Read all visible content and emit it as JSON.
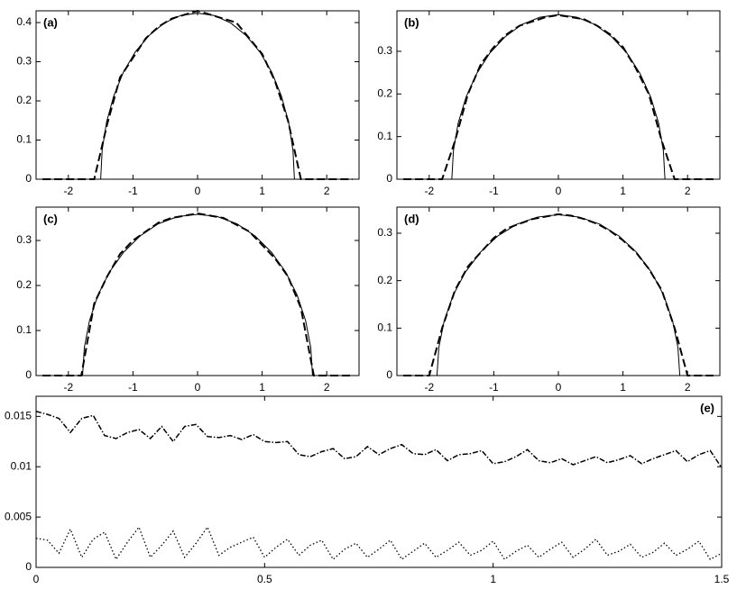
{
  "chart_data": [
    {
      "type": "line",
      "label": "(a)",
      "label_corner": "upper left",
      "xlim": [
        -2.5,
        2.5
      ],
      "ylim": [
        0,
        0.43
      ],
      "xticks": [
        -2,
        -1,
        0,
        1,
        2
      ],
      "yticks": [
        0,
        0.1,
        0.2,
        0.3,
        0.4
      ],
      "series": [
        {
          "color": "#000000",
          "dash": "solid",
          "x": [
            -1.5,
            -1.477,
            -1.41,
            -1.299,
            -1.149,
            -0.964,
            -0.75,
            -0.513,
            -0.261,
            0,
            0.261,
            0.513,
            0.75,
            0.964,
            1.149,
            1.299,
            1.41,
            1.477,
            1.5
          ],
          "values": [
            0,
            0.074,
            0.145,
            0.212,
            0.273,
            0.325,
            0.367,
            0.399,
            0.418,
            0.424,
            0.418,
            0.399,
            0.367,
            0.325,
            0.273,
            0.212,
            0.145,
            0.074,
            0
          ]
        },
        {
          "color": "#000000",
          "dash": "dashed",
          "x": [
            -2.4,
            -2.2,
            -2,
            -1.8,
            -1.6,
            -1.4,
            -1.2,
            -1,
            -0.8,
            -0.6,
            -0.4,
            -0.2,
            0,
            0.2,
            0.4,
            0.6,
            0.8,
            1,
            1.2,
            1.4,
            1.6,
            1.8,
            2,
            2.2,
            2.4
          ],
          "values": [
            0,
            0,
            0,
            0,
            0,
            0.14,
            0.26,
            0.31,
            0.36,
            0.39,
            0.41,
            0.42,
            0.43,
            0.42,
            0.41,
            0.4,
            0.36,
            0.32,
            0.25,
            0.15,
            0,
            0,
            0,
            0,
            0
          ]
        }
      ]
    },
    {
      "type": "line",
      "label": "(b)",
      "label_corner": "upper left",
      "xlim": [
        -2.5,
        2.5
      ],
      "ylim": [
        0,
        0.395
      ],
      "xticks": [
        -2,
        -1,
        0,
        1,
        2
      ],
      "yticks": [
        0,
        0.1,
        0.2,
        0.3
      ],
      "series": [
        {
          "color": "#000000",
          "dash": "solid",
          "x": [
            -1.65,
            -1.625,
            -1.551,
            -1.429,
            -1.264,
            -1.061,
            -0.825,
            -0.564,
            -0.287,
            0,
            0.287,
            0.564,
            0.825,
            1.061,
            1.264,
            1.429,
            1.551,
            1.625,
            1.65
          ],
          "values": [
            0,
            0.067,
            0.132,
            0.193,
            0.248,
            0.296,
            0.334,
            0.363,
            0.38,
            0.386,
            0.38,
            0.363,
            0.334,
            0.296,
            0.248,
            0.193,
            0.132,
            0.067,
            0
          ]
        },
        {
          "color": "#000000",
          "dash": "dashed",
          "x": [
            -2.4,
            -2.2,
            -2,
            -1.8,
            -1.6,
            -1.4,
            -1.2,
            -1,
            -0.8,
            -0.6,
            -0.4,
            -0.2,
            0,
            0.2,
            0.4,
            0.6,
            0.8,
            1,
            1.2,
            1.4,
            1.6,
            1.8,
            2,
            2.2,
            2.4
          ],
          "values": [
            0,
            0,
            0,
            0,
            0.09,
            0.2,
            0.27,
            0.31,
            0.34,
            0.36,
            0.37,
            0.38,
            0.385,
            0.38,
            0.375,
            0.36,
            0.34,
            0.31,
            0.26,
            0.2,
            0.09,
            0,
            0,
            0,
            0
          ]
        }
      ]
    },
    {
      "type": "line",
      "label": "(c)",
      "label_corner": "upper left",
      "xlim": [
        -2.5,
        2.5
      ],
      "ylim": [
        0,
        0.374
      ],
      "xticks": [
        -2,
        -1,
        0,
        1,
        2
      ],
      "yticks": [
        0,
        0.1,
        0.2,
        0.3
      ],
      "series": [
        {
          "color": "#000000",
          "dash": "solid",
          "x": [
            -1.78,
            -1.753,
            -1.673,
            -1.541,
            -1.364,
            -1.144,
            -0.89,
            -0.609,
            -0.309,
            0,
            0.309,
            0.609,
            0.89,
            1.144,
            1.364,
            1.541,
            1.673,
            1.753,
            1.78
          ],
          "values": [
            0,
            0.062,
            0.122,
            0.179,
            0.23,
            0.274,
            0.31,
            0.337,
            0.353,
            0.358,
            0.353,
            0.337,
            0.31,
            0.274,
            0.23,
            0.179,
            0.122,
            0.062,
            0
          ]
        },
        {
          "color": "#000000",
          "dash": "dashed",
          "x": [
            -2.4,
            -2.2,
            -2,
            -1.8,
            -1.6,
            -1.4,
            -1.2,
            -1,
            -0.8,
            -0.6,
            -0.4,
            -0.2,
            0,
            0.2,
            0.4,
            0.6,
            0.8,
            1,
            1.2,
            1.4,
            1.6,
            1.8,
            2,
            2.2,
            2.4
          ],
          "values": [
            0,
            0,
            0,
            0,
            0.16,
            0.22,
            0.27,
            0.3,
            0.32,
            0.34,
            0.35,
            0.355,
            0.36,
            0.355,
            0.35,
            0.335,
            0.32,
            0.29,
            0.26,
            0.22,
            0.15,
            0,
            0,
            0,
            0
          ]
        }
      ]
    },
    {
      "type": "line",
      "label": "(d)",
      "label_corner": "upper left",
      "xlim": [
        -2.5,
        2.5
      ],
      "ylim": [
        0,
        0.355
      ],
      "xticks": [
        -2,
        -1,
        0,
        1,
        2
      ],
      "yticks": [
        0,
        0.1,
        0.2,
        0.3
      ],
      "series": [
        {
          "color": "#000000",
          "dash": "solid",
          "x": [
            -1.88,
            -1.851,
            -1.767,
            -1.628,
            -1.44,
            -1.208,
            -0.94,
            -0.643,
            -0.326,
            0,
            0.326,
            0.643,
            0.94,
            1.208,
            1.44,
            1.628,
            1.767,
            1.851,
            1.88
          ],
          "values": [
            0,
            0.059,
            0.116,
            0.17,
            0.218,
            0.26,
            0.294,
            0.319,
            0.334,
            0.339,
            0.334,
            0.319,
            0.294,
            0.26,
            0.218,
            0.17,
            0.116,
            0.059,
            0
          ]
        },
        {
          "color": "#000000",
          "dash": "dashed",
          "x": [
            -2.4,
            -2.2,
            -2,
            -1.8,
            -1.6,
            -1.4,
            -1.2,
            -1,
            -0.8,
            -0.6,
            -0.4,
            -0.2,
            0,
            0.2,
            0.4,
            0.6,
            0.8,
            1,
            1.2,
            1.4,
            1.6,
            1.8,
            2,
            2.2,
            2.4
          ],
          "values": [
            0,
            0,
            0,
            0.1,
            0.18,
            0.23,
            0.26,
            0.29,
            0.31,
            0.32,
            0.33,
            0.335,
            0.34,
            0.337,
            0.33,
            0.32,
            0.305,
            0.285,
            0.26,
            0.225,
            0.18,
            0.1,
            0,
            0,
            0
          ]
        }
      ]
    },
    {
      "type": "line",
      "label": "(e)",
      "label_corner": "upper right",
      "xlim": [
        0,
        1.5
      ],
      "ylim": [
        0,
        0.017
      ],
      "xticks": [
        0,
        0.5,
        1,
        1.5
      ],
      "yticks": [
        0,
        0.005,
        0.01,
        0.015
      ],
      "x": [
        0,
        0.025,
        0.05,
        0.075,
        0.1,
        0.125,
        0.15,
        0.175,
        0.2,
        0.225,
        0.25,
        0.275,
        0.3,
        0.325,
        0.35,
        0.375,
        0.4,
        0.425,
        0.45,
        0.475,
        0.5,
        0.525,
        0.55,
        0.575,
        0.6,
        0.625,
        0.65,
        0.675,
        0.7,
        0.725,
        0.75,
        0.775,
        0.8,
        0.825,
        0.85,
        0.875,
        0.9,
        0.925,
        0.95,
        0.975,
        1,
        1.025,
        1.05,
        1.075,
        1.1,
        1.125,
        1.15,
        1.175,
        1.2,
        1.225,
        1.25,
        1.275,
        1.3,
        1.325,
        1.35,
        1.375,
        1.4,
        1.425,
        1.45,
        1.475,
        1.5
      ],
      "series": [
        {
          "color": "#000000",
          "dash": "dashdot",
          "values": [
            0.0155,
            0.0152,
            0.0148,
            0.0134,
            0.0148,
            0.0151,
            0.0131,
            0.0128,
            0.0134,
            0.0137,
            0.0128,
            0.014,
            0.0125,
            0.014,
            0.0142,
            0.013,
            0.0129,
            0.0131,
            0.0127,
            0.0132,
            0.0125,
            0.0124,
            0.0125,
            0.0112,
            0.011,
            0.0115,
            0.0118,
            0.0108,
            0.011,
            0.012,
            0.0112,
            0.0118,
            0.0122,
            0.0113,
            0.0112,
            0.0117,
            0.0106,
            0.0112,
            0.0113,
            0.0116,
            0.0103,
            0.0105,
            0.011,
            0.0117,
            0.0106,
            0.0104,
            0.0108,
            0.0102,
            0.0106,
            0.011,
            0.0104,
            0.0107,
            0.0111,
            0.0103,
            0.0108,
            0.0112,
            0.0116,
            0.0105,
            0.0112,
            0.0116,
            0.0099
          ]
        },
        {
          "color": "#000000",
          "dash": "dotted",
          "values": [
            0.0029,
            0.0027,
            0.0014,
            0.0038,
            0.001,
            0.0028,
            0.0035,
            0.0008,
            0.0025,
            0.004,
            0.001,
            0.0022,
            0.0036,
            0.001,
            0.0024,
            0.004,
            0.0012,
            0.002,
            0.0025,
            0.003,
            0.001,
            0.002,
            0.0028,
            0.0012,
            0.0022,
            0.0027,
            0.0008,
            0.0018,
            0.0024,
            0.001,
            0.0018,
            0.0027,
            0.0008,
            0.0016,
            0.0024,
            0.001,
            0.0017,
            0.0025,
            0.0012,
            0.0017,
            0.0026,
            0.0008,
            0.0016,
            0.0022,
            0.001,
            0.0018,
            0.0025,
            0.001,
            0.0018,
            0.0028,
            0.0012,
            0.0016,
            0.0023,
            0.001,
            0.0015,
            0.0024,
            0.0012,
            0.0018,
            0.0026,
            0.0008,
            0.0014
          ]
        }
      ]
    }
  ]
}
